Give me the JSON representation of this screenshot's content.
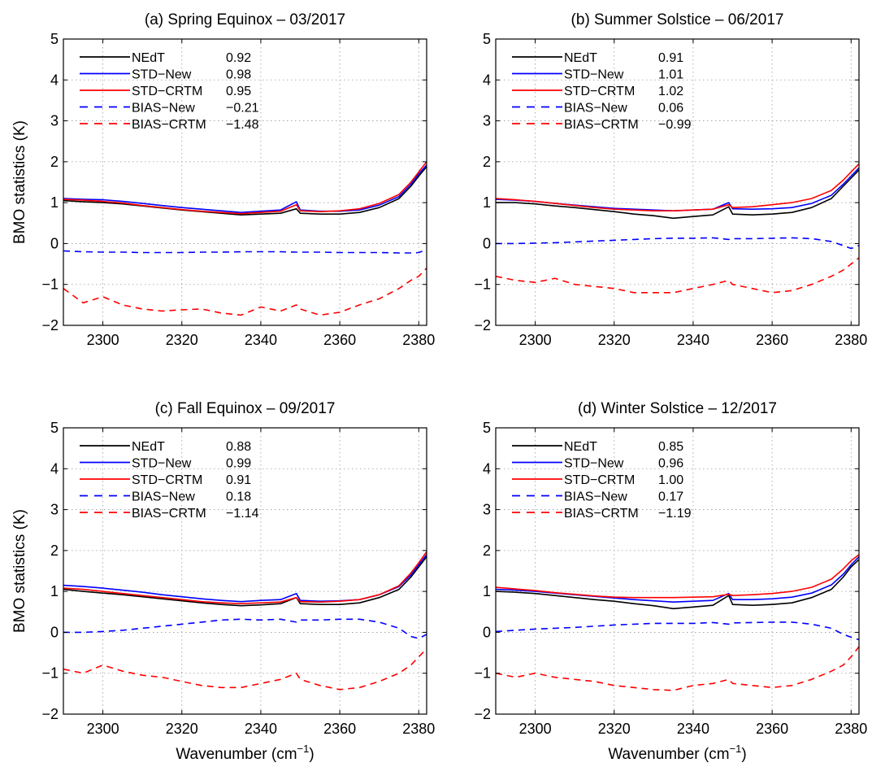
{
  "figure": {
    "ylabel": "BMO statistics (K)",
    "xlabel_main": "Wavenumber (cm",
    "xlabel_sup": "−1",
    "xlabel_close": ")"
  },
  "colors": {
    "nedt": "#000000",
    "std_new": "#0000ff",
    "std_crtm": "#ff0000",
    "bias_new": "#0000ff",
    "bias_crtm": "#ff0000"
  },
  "chart_data": [
    {
      "type": "line",
      "title": "(a) Spring Equinox – 03/2017",
      "xlim": [
        2290,
        2382
      ],
      "ylim": [
        -2,
        5
      ],
      "xticks": [
        "2300",
        "2320",
        "2340",
        "2360",
        "2380"
      ],
      "yticks": [
        "−2",
        "−1",
        "0",
        "1",
        "2",
        "3",
        "4",
        "5"
      ],
      "grid": true,
      "legend": "top-left",
      "x": [
        2290,
        2295,
        2300,
        2305,
        2310,
        2315,
        2320,
        2325,
        2330,
        2335,
        2340,
        2345,
        2349,
        2350,
        2355,
        2360,
        2365,
        2370,
        2375,
        2378,
        2380,
        2382
      ],
      "series": [
        {
          "name": "NEdT",
          "stat": "0.92",
          "style": "solid",
          "values": [
            1.05,
            1.02,
            1.0,
            0.97,
            0.92,
            0.87,
            0.82,
            0.78,
            0.74,
            0.7,
            0.72,
            0.74,
            0.85,
            0.74,
            0.72,
            0.72,
            0.76,
            0.88,
            1.1,
            1.4,
            1.65,
            1.88
          ]
        },
        {
          "name": "STD−New",
          "stat": "0.98",
          "style": "solid",
          "values": [
            1.1,
            1.08,
            1.07,
            1.03,
            0.98,
            0.93,
            0.88,
            0.84,
            0.8,
            0.76,
            0.79,
            0.82,
            1.02,
            0.82,
            0.79,
            0.79,
            0.82,
            0.94,
            1.15,
            1.45,
            1.7,
            1.92
          ]
        },
        {
          "name": "STD−CRTM",
          "stat": "0.95",
          "style": "solid",
          "values": [
            1.08,
            1.06,
            1.03,
            0.99,
            0.93,
            0.88,
            0.83,
            0.79,
            0.76,
            0.73,
            0.76,
            0.79,
            0.95,
            0.8,
            0.78,
            0.8,
            0.85,
            0.98,
            1.2,
            1.5,
            1.75,
            2.0
          ]
        },
        {
          "name": "BIAS−New",
          "stat": "−0.21",
          "style": "dashed",
          "values": [
            -0.18,
            -0.2,
            -0.21,
            -0.21,
            -0.22,
            -0.22,
            -0.22,
            -0.21,
            -0.21,
            -0.2,
            -0.2,
            -0.2,
            -0.21,
            -0.21,
            -0.21,
            -0.22,
            -0.22,
            -0.22,
            -0.23,
            -0.23,
            -0.22,
            -0.15
          ]
        },
        {
          "name": "BIAS−CRTM",
          "stat": "−1.48",
          "style": "dashed",
          "values": [
            -1.1,
            -1.45,
            -1.3,
            -1.5,
            -1.6,
            -1.65,
            -1.62,
            -1.6,
            -1.7,
            -1.75,
            -1.55,
            -1.65,
            -1.5,
            -1.6,
            -1.75,
            -1.68,
            -1.5,
            -1.35,
            -1.1,
            -0.9,
            -0.8,
            -0.6
          ]
        }
      ]
    },
    {
      "type": "line",
      "title": "(b) Summer Solstice – 06/2017",
      "xlim": [
        2290,
        2382
      ],
      "ylim": [
        -2,
        5
      ],
      "xticks": [
        "2300",
        "2320",
        "2340",
        "2360",
        "2380"
      ],
      "yticks": [
        "−2",
        "−1",
        "0",
        "1",
        "2",
        "3",
        "4",
        "5"
      ],
      "grid": true,
      "legend": "top-left",
      "x": [
        2290,
        2295,
        2300,
        2305,
        2310,
        2315,
        2320,
        2325,
        2330,
        2335,
        2340,
        2345,
        2349,
        2350,
        2355,
        2360,
        2365,
        2370,
        2375,
        2378,
        2380,
        2382
      ],
      "series": [
        {
          "name": "NEdT",
          "stat": "0.91",
          "style": "solid",
          "values": [
            1.0,
            1.0,
            0.97,
            0.92,
            0.88,
            0.83,
            0.78,
            0.72,
            0.68,
            0.62,
            0.66,
            0.7,
            0.9,
            0.72,
            0.7,
            0.72,
            0.76,
            0.88,
            1.1,
            1.4,
            1.6,
            1.8
          ]
        },
        {
          "name": "STD−New",
          "stat": "1.01",
          "style": "solid",
          "values": [
            1.08,
            1.06,
            1.03,
            0.98,
            0.94,
            0.9,
            0.86,
            0.84,
            0.82,
            0.8,
            0.82,
            0.84,
            1.0,
            0.85,
            0.84,
            0.85,
            0.88,
            0.98,
            1.18,
            1.45,
            1.65,
            1.85
          ]
        },
        {
          "name": "STD−CRTM",
          "stat": "1.02",
          "style": "solid",
          "values": [
            1.1,
            1.07,
            1.03,
            0.98,
            0.93,
            0.88,
            0.84,
            0.82,
            0.8,
            0.8,
            0.82,
            0.84,
            0.95,
            0.88,
            0.9,
            0.95,
            1.0,
            1.1,
            1.3,
            1.55,
            1.75,
            1.95
          ]
        },
        {
          "name": "BIAS−New",
          "stat": "0.06",
          "style": "dashed",
          "values": [
            0.0,
            0.0,
            0.01,
            0.02,
            0.04,
            0.06,
            0.08,
            0.1,
            0.12,
            0.13,
            0.13,
            0.14,
            0.1,
            0.12,
            0.12,
            0.13,
            0.14,
            0.12,
            0.05,
            -0.05,
            -0.12,
            -0.05
          ]
        },
        {
          "name": "BIAS−CRTM",
          "stat": "−0.99",
          "style": "dashed",
          "values": [
            -0.8,
            -0.9,
            -0.95,
            -0.85,
            -1.0,
            -1.05,
            -1.1,
            -1.2,
            -1.2,
            -1.2,
            -1.1,
            -1.0,
            -0.9,
            -1.0,
            -1.1,
            -1.2,
            -1.15,
            -1.0,
            -0.8,
            -0.65,
            -0.5,
            -0.35
          ]
        }
      ]
    },
    {
      "type": "line",
      "title": "(c) Fall Equinox – 09/2017",
      "xlim": [
        2290,
        2382
      ],
      "ylim": [
        -2,
        5
      ],
      "xticks": [
        "2300",
        "2320",
        "2340",
        "2360",
        "2380"
      ],
      "yticks": [
        "−2",
        "−1",
        "0",
        "1",
        "2",
        "3",
        "4",
        "5"
      ],
      "grid": true,
      "legend": "top-left",
      "x": [
        2290,
        2295,
        2300,
        2305,
        2310,
        2315,
        2320,
        2325,
        2330,
        2335,
        2340,
        2345,
        2349,
        2350,
        2355,
        2360,
        2365,
        2370,
        2375,
        2378,
        2380,
        2382
      ],
      "series": [
        {
          "name": "NEdT",
          "stat": "0.88",
          "style": "solid",
          "values": [
            1.05,
            1.0,
            0.96,
            0.92,
            0.87,
            0.82,
            0.77,
            0.72,
            0.68,
            0.65,
            0.67,
            0.7,
            0.85,
            0.7,
            0.68,
            0.68,
            0.72,
            0.85,
            1.05,
            1.35,
            1.6,
            1.85
          ]
        },
        {
          "name": "STD−New",
          "stat": "0.99",
          "style": "solid",
          "values": [
            1.15,
            1.12,
            1.08,
            1.03,
            0.98,
            0.92,
            0.87,
            0.82,
            0.78,
            0.75,
            0.78,
            0.8,
            0.95,
            0.78,
            0.76,
            0.77,
            0.8,
            0.92,
            1.12,
            1.4,
            1.65,
            1.9
          ]
        },
        {
          "name": "STD−CRTM",
          "stat": "0.91",
          "style": "solid",
          "values": [
            1.08,
            1.05,
            1.0,
            0.95,
            0.9,
            0.85,
            0.8,
            0.75,
            0.72,
            0.7,
            0.72,
            0.74,
            0.85,
            0.75,
            0.74,
            0.76,
            0.8,
            0.92,
            1.14,
            1.45,
            1.7,
            1.97
          ]
        },
        {
          "name": "BIAS−New",
          "stat": "0.18",
          "style": "dashed",
          "values": [
            0.0,
            0.0,
            0.02,
            0.05,
            0.1,
            0.15,
            0.2,
            0.25,
            0.3,
            0.32,
            0.3,
            0.32,
            0.25,
            0.3,
            0.3,
            0.32,
            0.32,
            0.25,
            0.1,
            -0.1,
            -0.15,
            -0.05
          ]
        },
        {
          "name": "BIAS−CRTM",
          "stat": "−1.14",
          "style": "dashed",
          "values": [
            -0.9,
            -1.0,
            -0.8,
            -0.95,
            -1.05,
            -1.1,
            -1.2,
            -1.3,
            -1.35,
            -1.35,
            -1.25,
            -1.15,
            -1.0,
            -1.15,
            -1.3,
            -1.4,
            -1.35,
            -1.2,
            -1.0,
            -0.8,
            -0.6,
            -0.4
          ]
        }
      ]
    },
    {
      "type": "line",
      "title": "(d) Winter Solstice – 12/2017",
      "xlim": [
        2290,
        2382
      ],
      "ylim": [
        -2,
        5
      ],
      "xticks": [
        "2300",
        "2320",
        "2340",
        "2360",
        "2380"
      ],
      "yticks": [
        "−2",
        "−1",
        "0",
        "1",
        "2",
        "3",
        "4",
        "5"
      ],
      "grid": true,
      "legend": "top-left",
      "x": [
        2290,
        2295,
        2300,
        2305,
        2310,
        2315,
        2320,
        2325,
        2330,
        2335,
        2340,
        2345,
        2349,
        2350,
        2355,
        2360,
        2365,
        2370,
        2375,
        2378,
        2380,
        2382
      ],
      "series": [
        {
          "name": "NEdT",
          "stat": "0.85",
          "style": "solid",
          "values": [
            1.0,
            0.98,
            0.95,
            0.9,
            0.85,
            0.8,
            0.76,
            0.7,
            0.65,
            0.58,
            0.62,
            0.66,
            0.9,
            0.68,
            0.66,
            0.68,
            0.72,
            0.85,
            1.05,
            1.35,
            1.6,
            1.78
          ]
        },
        {
          "name": "STD−New",
          "stat": "0.96",
          "style": "solid",
          "values": [
            1.05,
            1.03,
            1.0,
            0.96,
            0.92,
            0.88,
            0.84,
            0.8,
            0.77,
            0.74,
            0.76,
            0.78,
            0.95,
            0.8,
            0.8,
            0.82,
            0.86,
            0.96,
            1.16,
            1.42,
            1.65,
            1.85
          ]
        },
        {
          "name": "STD−CRTM",
          "stat": "1.00",
          "style": "solid",
          "values": [
            1.1,
            1.06,
            1.02,
            0.97,
            0.93,
            0.89,
            0.86,
            0.85,
            0.85,
            0.85,
            0.86,
            0.87,
            0.93,
            0.9,
            0.92,
            0.95,
            1.0,
            1.1,
            1.3,
            1.55,
            1.75,
            1.9
          ]
        },
        {
          "name": "BIAS−New",
          "stat": "0.17",
          "style": "dashed",
          "values": [
            0.02,
            0.05,
            0.08,
            0.1,
            0.12,
            0.15,
            0.18,
            0.2,
            0.22,
            0.22,
            0.22,
            0.24,
            0.2,
            0.23,
            0.24,
            0.25,
            0.25,
            0.2,
            0.1,
            -0.05,
            -0.12,
            -0.18
          ]
        },
        {
          "name": "BIAS−CRTM",
          "stat": "−1.19",
          "style": "dashed",
          "values": [
            -1.0,
            -1.1,
            -1.0,
            -1.1,
            -1.15,
            -1.2,
            -1.3,
            -1.35,
            -1.4,
            -1.42,
            -1.3,
            -1.25,
            -1.15,
            -1.25,
            -1.3,
            -1.35,
            -1.3,
            -1.15,
            -0.95,
            -0.8,
            -0.6,
            -0.35
          ]
        }
      ]
    }
  ]
}
